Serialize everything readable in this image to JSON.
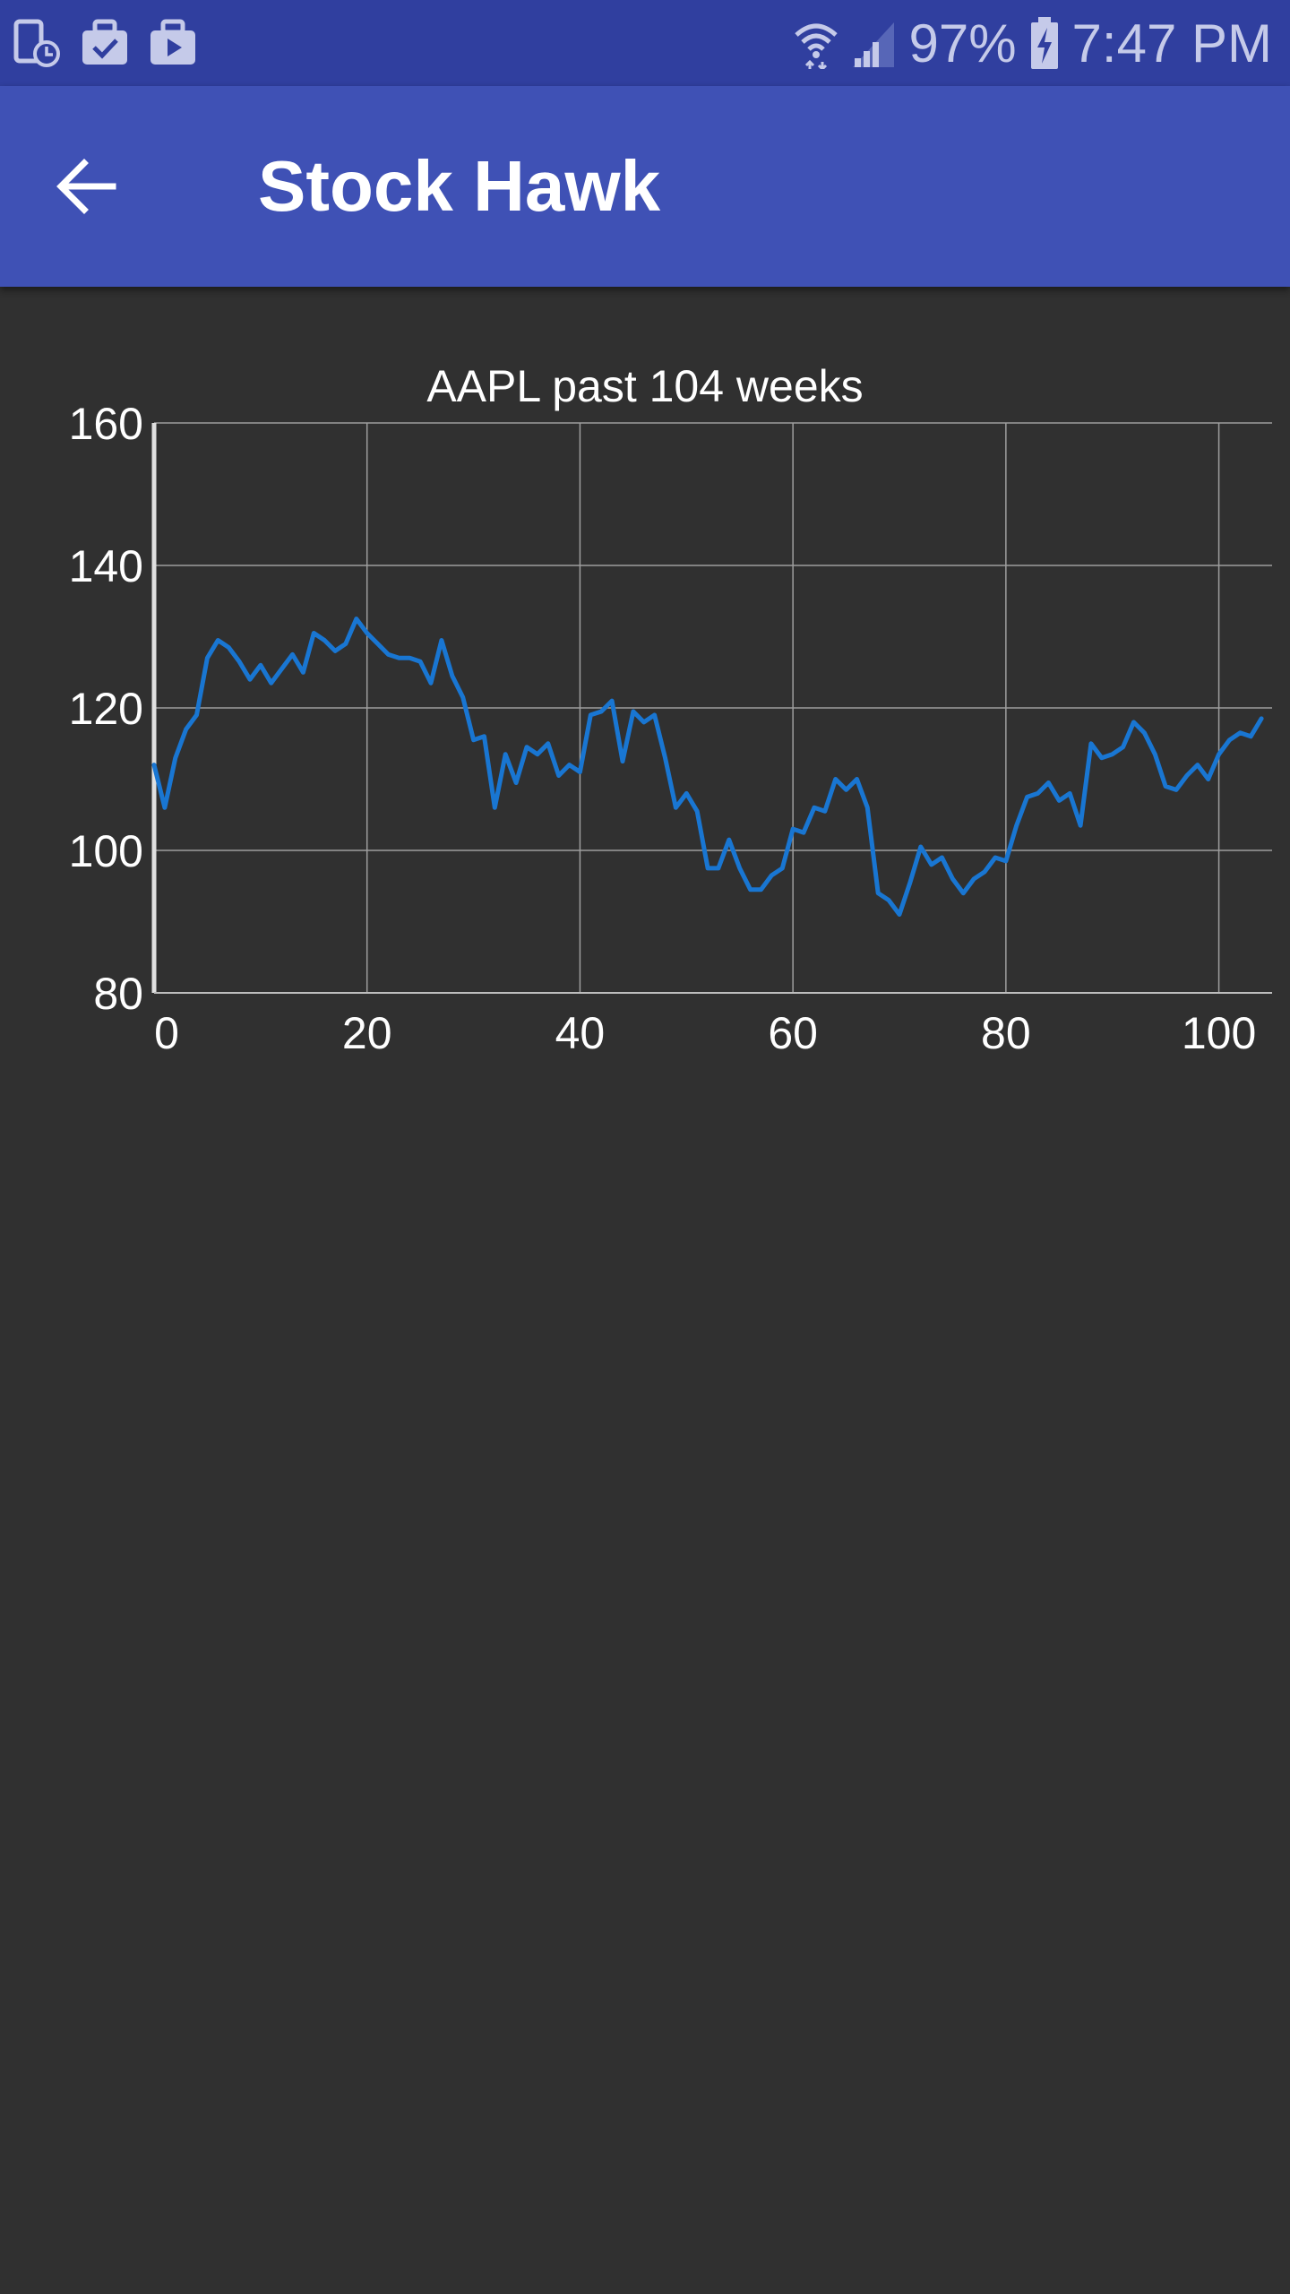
{
  "status_bar": {
    "left_icons": [
      "phone-clock-icon",
      "briefcase-check-icon",
      "briefcase-play-icon"
    ],
    "battery_percent": "97%",
    "time": "7:47 PM",
    "icon_color": "#C5CAE9",
    "background": "#303F9F"
  },
  "app_bar": {
    "title": "Stock Hawk",
    "back_icon": "arrow-back-icon",
    "background": "#3F51B5"
  },
  "chart_data": {
    "type": "line",
    "title": "AAPL past 104 weeks",
    "xlabel": "",
    "ylabel": "",
    "xlim": [
      0,
      105
    ],
    "ylim": [
      80,
      160
    ],
    "x_ticks": [
      0,
      20,
      40,
      60,
      80,
      100
    ],
    "y_ticks": [
      80,
      100,
      120,
      140,
      160
    ],
    "grid": true,
    "line_color": "#1976D2",
    "series": [
      {
        "values": [
          112,
          106,
          113,
          117,
          119,
          127,
          129.5,
          128.5,
          126.5,
          124,
          126,
          123.5,
          125.5,
          127.5,
          125,
          130.5,
          129.5,
          128,
          129,
          132.5,
          130.5,
          129,
          127.5,
          127,
          127,
          126.5,
          123.5,
          129.5,
          124.5,
          121.5,
          115.5,
          116,
          106,
          113.5,
          109.5,
          114.5,
          113.5,
          115,
          110.5,
          112,
          111,
          119,
          119.5,
          121,
          112.5,
          119.5,
          118,
          119,
          113,
          106,
          108,
          105.5,
          97.5,
          97.5,
          101.5,
          97.5,
          94.5,
          94.5,
          96.5,
          97.5,
          103,
          102.5,
          106,
          105.5,
          110,
          108.5,
          110,
          106,
          94,
          93,
          91,
          95.5,
          100.5,
          98,
          99,
          96,
          94,
          96,
          97,
          99,
          98.5,
          103.5,
          107.5,
          108,
          109.5,
          107,
          108,
          103.5,
          115,
          113,
          113.5,
          114.5,
          118,
          116.5,
          113.5,
          109,
          108.5,
          110.5,
          112,
          110,
          113.5,
          115.5,
          116.5,
          116,
          118.5
        ]
      }
    ]
  }
}
